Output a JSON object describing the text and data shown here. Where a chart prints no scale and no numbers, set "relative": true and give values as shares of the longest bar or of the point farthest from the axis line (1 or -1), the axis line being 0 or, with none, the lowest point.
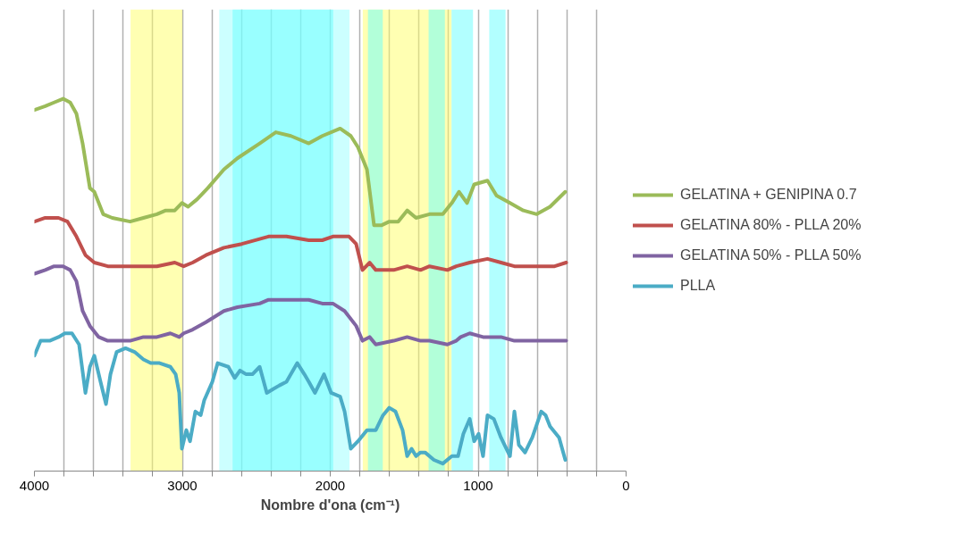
{
  "chart_data": {
    "type": "line",
    "relative": true,
    "xlabel": "Nombre d'ona (cm⁻¹)",
    "xlim": [
      4000,
      0
    ],
    "xticks": [
      4000,
      {
        "value": 3800,
        "label": null
      },
      {
        "value": 3600,
        "label": null
      },
      {
        "value": 3400,
        "label": null
      },
      {
        "value": 3200,
        "label": null
      },
      3000,
      {
        "value": 2800,
        "label": null
      },
      {
        "value": 2600,
        "label": null
      },
      {
        "value": 2400,
        "label": null
      },
      {
        "value": 2200,
        "label": null
      },
      2000,
      {
        "value": 1800,
        "label": null
      },
      {
        "value": 1600,
        "label": null
      },
      {
        "value": 1400,
        "label": null
      },
      {
        "value": 1200,
        "label": null
      },
      1000,
      {
        "value": 800,
        "label": null
      },
      {
        "value": 600,
        "label": null
      },
      {
        "value": 400,
        "label": null
      },
      {
        "value": 200,
        "label": null
      },
      0
    ],
    "grid": "x",
    "legend": "right",
    "marker": "none",
    "line_style": "solid",
    "bands": [
      {
        "axis": "x",
        "from": 3350,
        "to": 3000,
        "color": "#ffff66"
      },
      {
        "axis": "x",
        "from": 1780,
        "to": 1180,
        "color": "#ffff66"
      },
      {
        "axis": "x",
        "from": 2750,
        "to": 1870,
        "color": "#99ffff"
      },
      {
        "axis": "x",
        "from": 2660,
        "to": 1980,
        "color": "#66ffff"
      },
      {
        "axis": "x",
        "from": 1745,
        "to": 1645,
        "color": "#66ffff"
      },
      {
        "axis": "x",
        "from": 1335,
        "to": 1225,
        "color": "#66ffff"
      },
      {
        "axis": "x",
        "from": 1180,
        "to": 1035,
        "color": "#66ffff"
      },
      {
        "axis": "x",
        "from": 925,
        "to": 815,
        "color": "#66ffff"
      }
    ],
    "series": [
      {
        "name": "GELATINA + GENIPINA 0.7",
        "color": "#9bbb59",
        "x": [
          4000,
          3927,
          3867,
          3806,
          3758,
          3716,
          3674,
          3625,
          3595,
          3535,
          3474,
          3353,
          3263,
          3172,
          3112,
          3051,
          3003,
          2961,
          2900,
          2828,
          2719,
          2628,
          2477,
          2368,
          2266,
          2145,
          2054,
          1933,
          1861,
          1813,
          1752,
          1704,
          1655,
          1601,
          1541,
          1480,
          1420,
          1329,
          1239,
          1178,
          1130,
          1075,
          1027,
          937,
          876,
          785,
          695,
          604,
          514,
          411
        ],
        "values": [
          0.97,
          0.98,
          0.99,
          1.0,
          0.99,
          0.96,
          0.88,
          0.76,
          0.75,
          0.69,
          0.68,
          0.67,
          0.68,
          0.69,
          0.7,
          0.7,
          0.72,
          0.71,
          0.73,
          0.76,
          0.81,
          0.84,
          0.88,
          0.91,
          0.9,
          0.88,
          0.9,
          0.92,
          0.9,
          0.87,
          0.81,
          0.66,
          0.66,
          0.67,
          0.67,
          0.7,
          0.68,
          0.69,
          0.69,
          0.72,
          0.75,
          0.72,
          0.77,
          0.78,
          0.74,
          0.72,
          0.7,
          0.69,
          0.71,
          0.75
        ]
      },
      {
        "name": "GELATINA 80% - PLLA 20%",
        "color": "#c0504d",
        "x": [
          4000,
          3927,
          3837,
          3776,
          3716,
          3655,
          3595,
          3504,
          3353,
          3172,
          3051,
          2991,
          2930,
          2840,
          2719,
          2598,
          2417,
          2296,
          2145,
          2054,
          1982,
          1873,
          1825,
          1782,
          1734,
          1692,
          1571,
          1480,
          1390,
          1329,
          1208,
          1148,
          1057,
          937,
          846,
          755,
          604,
          483,
          405
        ],
        "values": [
          0.67,
          0.68,
          0.68,
          0.67,
          0.63,
          0.58,
          0.56,
          0.55,
          0.55,
          0.55,
          0.56,
          0.55,
          0.56,
          0.58,
          0.6,
          0.61,
          0.63,
          0.63,
          0.62,
          0.62,
          0.63,
          0.63,
          0.61,
          0.54,
          0.56,
          0.54,
          0.54,
          0.55,
          0.54,
          0.55,
          0.54,
          0.55,
          0.56,
          0.57,
          0.56,
          0.55,
          0.55,
          0.55,
          0.56
        ]
      },
      {
        "name": "GELATINA 50% - PLLA 50%",
        "color": "#8064a2",
        "x": [
          4000,
          3927,
          3867,
          3806,
          3758,
          3716,
          3674,
          3625,
          3565,
          3504,
          3353,
          3263,
          3172,
          3081,
          3021,
          2991,
          2930,
          2840,
          2719,
          2628,
          2477,
          2417,
          2266,
          2145,
          2054,
          1982,
          1903,
          1825,
          1782,
          1734,
          1692,
          1571,
          1480,
          1390,
          1329,
          1208,
          1148,
          1118,
          1057,
          967,
          846,
          755,
          604,
          483,
          405
        ],
        "values": [
          0.53,
          0.54,
          0.55,
          0.55,
          0.54,
          0.51,
          0.43,
          0.39,
          0.36,
          0.35,
          0.35,
          0.36,
          0.36,
          0.37,
          0.36,
          0.37,
          0.38,
          0.4,
          0.43,
          0.44,
          0.45,
          0.46,
          0.46,
          0.46,
          0.45,
          0.45,
          0.43,
          0.39,
          0.35,
          0.36,
          0.34,
          0.35,
          0.36,
          0.35,
          0.35,
          0.34,
          0.35,
          0.36,
          0.37,
          0.36,
          0.36,
          0.35,
          0.35,
          0.35,
          0.35
        ]
      },
      {
        "name": "PLLA",
        "color": "#4bacc6",
        "x": [
          4000,
          3958,
          3897,
          3837,
          3794,
          3746,
          3698,
          3655,
          3625,
          3595,
          3553,
          3516,
          3486,
          3444,
          3384,
          3323,
          3263,
          3214,
          3154,
          3081,
          3045,
          3021,
          3003,
          2973,
          2948,
          2912,
          2876,
          2852,
          2797,
          2761,
          2689,
          2646,
          2610,
          2568,
          2526,
          2477,
          2429,
          2387,
          2344,
          2296,
          2223,
          2175,
          2145,
          2103,
          2042,
          1994,
          1933,
          1903,
          1861,
          1813,
          1752,
          1692,
          1643,
          1601,
          1559,
          1511,
          1480,
          1450,
          1420,
          1390,
          1359,
          1299,
          1239,
          1178,
          1136,
          1100,
          1057,
          1027,
          997,
          967,
          937,
          894,
          846,
          785,
          755,
          725,
          683,
          634,
          574,
          544,
          514,
          453,
          411
        ],
        "values": [
          0.31,
          0.35,
          0.35,
          0.36,
          0.37,
          0.37,
          0.34,
          0.21,
          0.28,
          0.31,
          0.24,
          0.18,
          0.26,
          0.32,
          0.33,
          0.32,
          0.3,
          0.29,
          0.29,
          0.28,
          0.26,
          0.21,
          0.06,
          0.11,
          0.08,
          0.16,
          0.15,
          0.19,
          0.24,
          0.29,
          0.28,
          0.25,
          0.27,
          0.26,
          0.26,
          0.28,
          0.21,
          0.22,
          0.23,
          0.24,
          0.29,
          0.26,
          0.24,
          0.21,
          0.26,
          0.21,
          0.2,
          0.16,
          0.06,
          0.08,
          0.11,
          0.11,
          0.15,
          0.17,
          0.16,
          0.11,
          0.04,
          0.06,
          0.04,
          0.05,
          0.05,
          0.03,
          0.02,
          0.04,
          0.04,
          0.1,
          0.14,
          0.08,
          0.1,
          0.04,
          0.15,
          0.14,
          0.09,
          0.04,
          0.16,
          0.07,
          0.05,
          0.09,
          0.16,
          0.15,
          0.12,
          0.09,
          0.03
        ]
      }
    ]
  }
}
